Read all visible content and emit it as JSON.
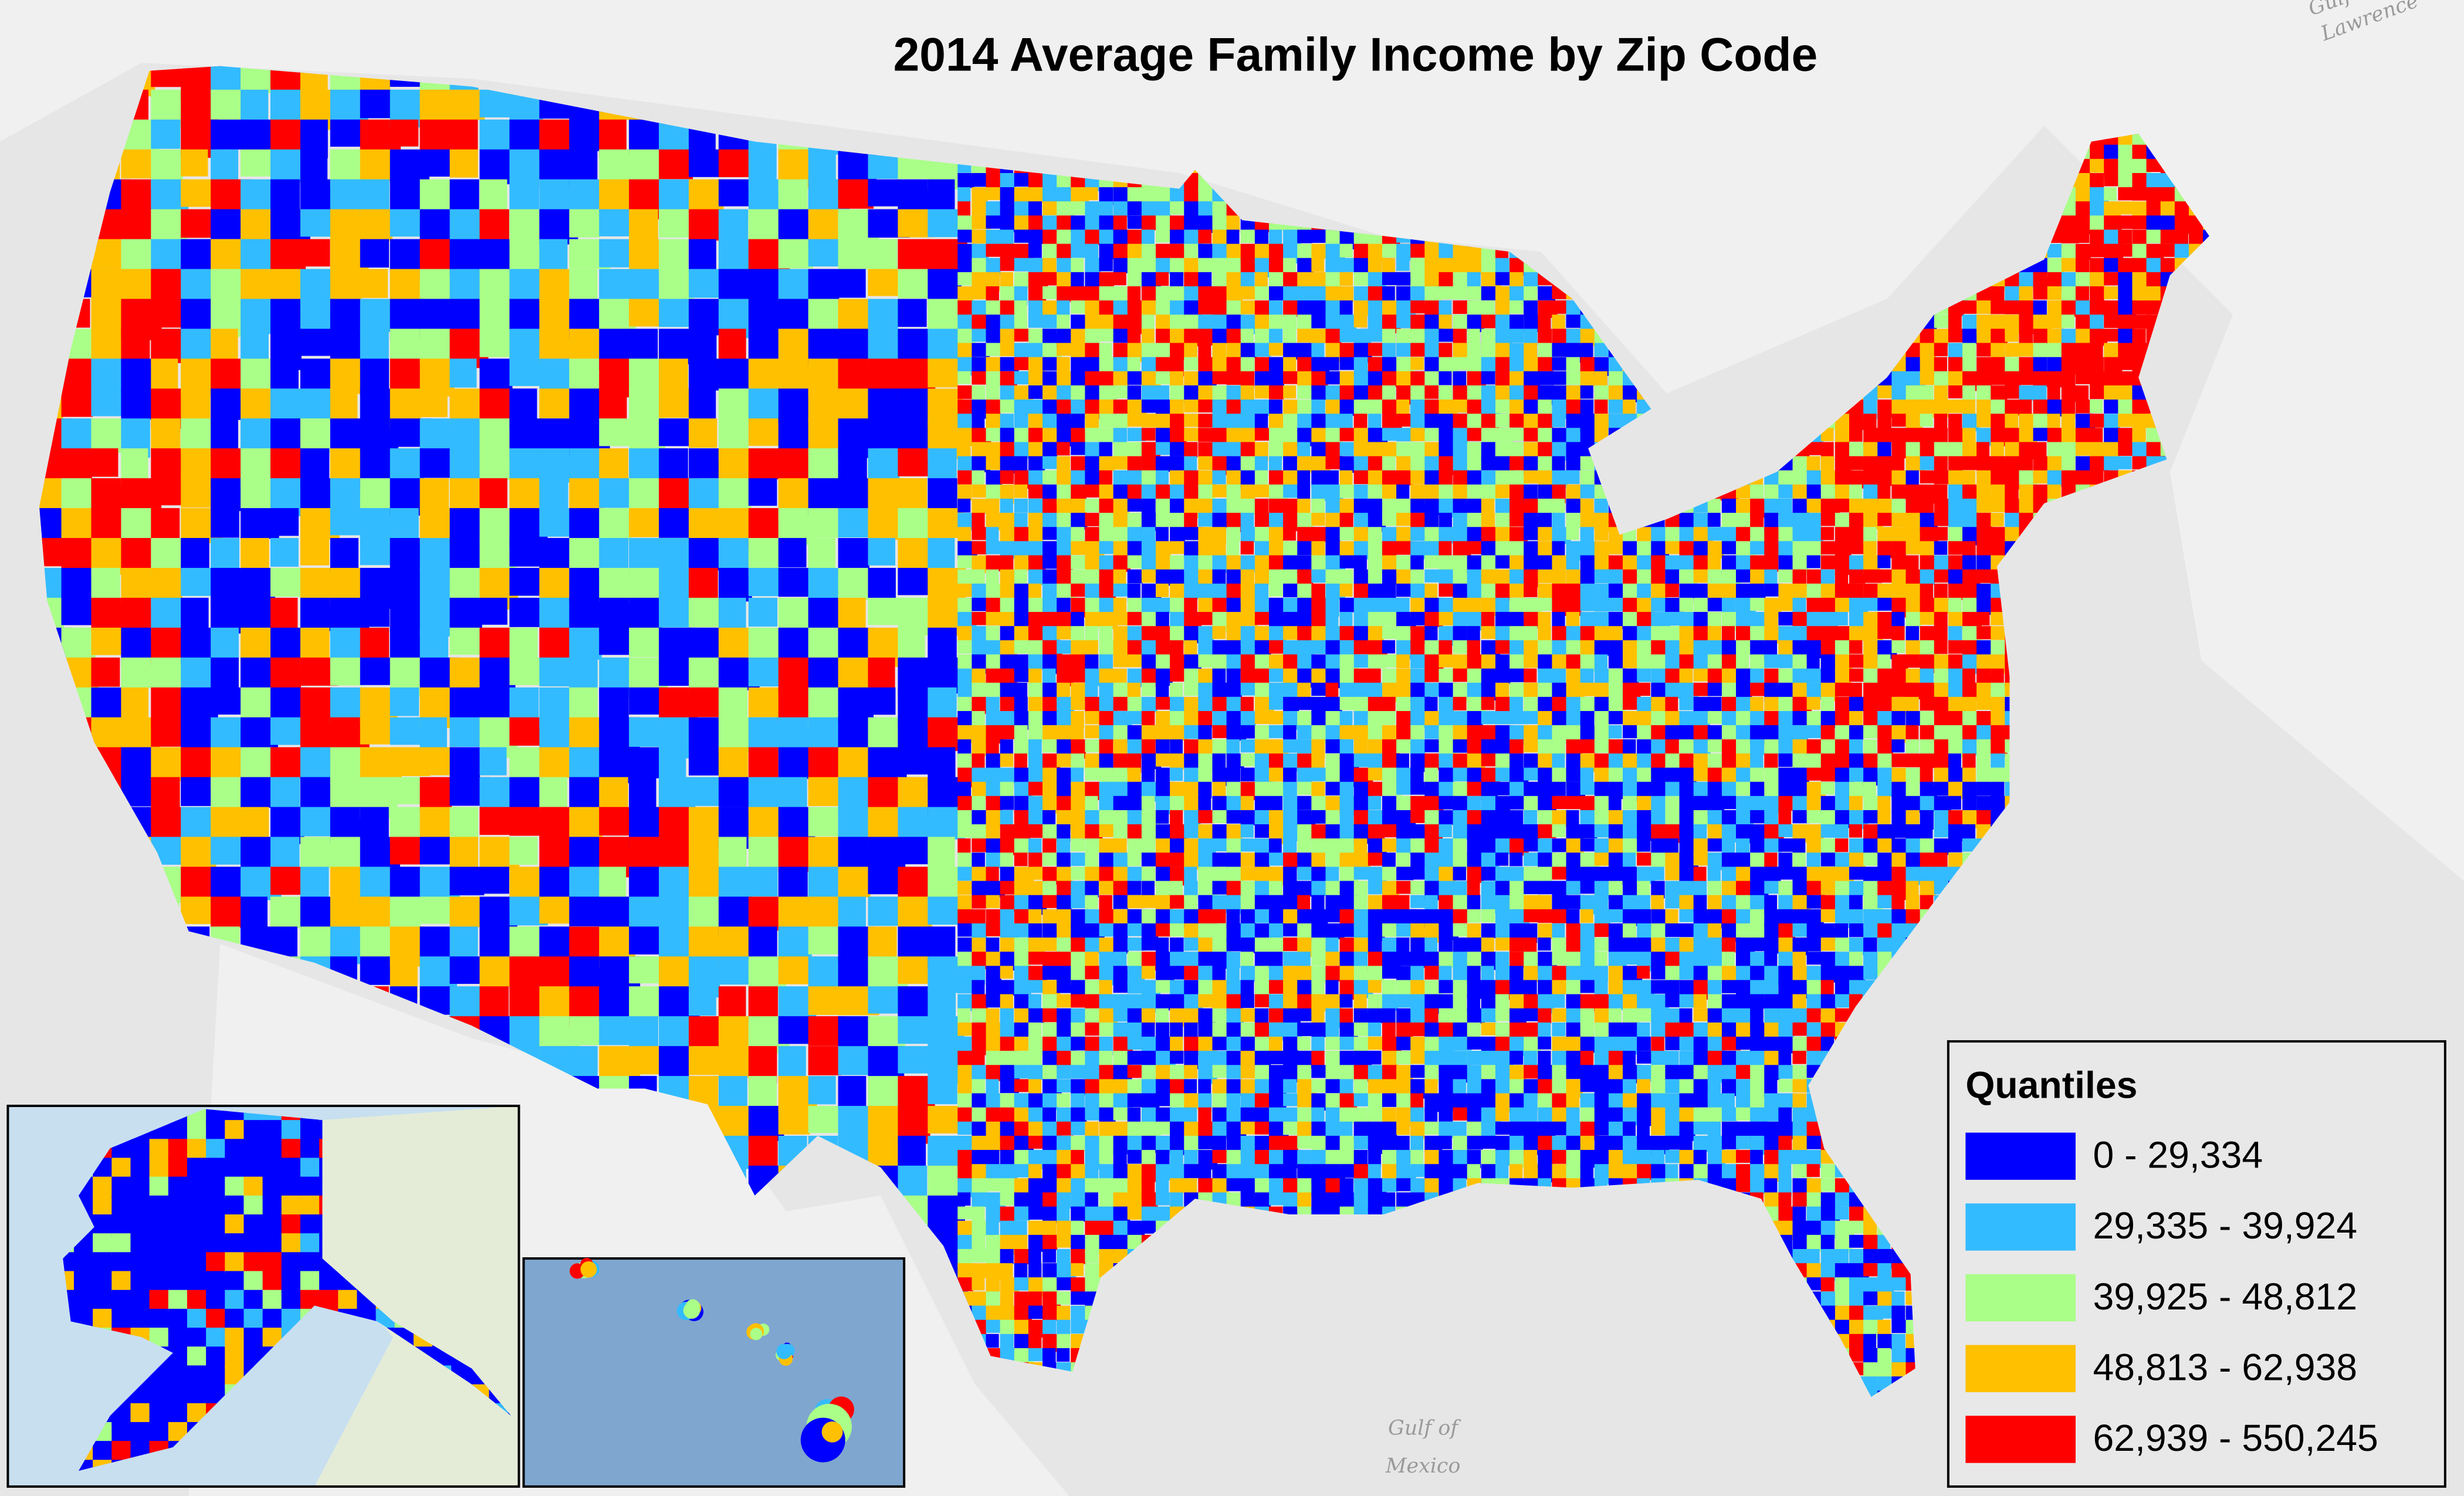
{
  "header": {
    "title": "2014 Average Family Income by Zip Code"
  },
  "basemap_labels": {
    "gulf_of_mexico": [
      "Gulf of",
      "Mexico"
    ],
    "gulf_of_lawrence": [
      "Gulf",
      "Lawrence"
    ]
  },
  "legend": {
    "title": "Quantiles",
    "items": [
      {
        "label": "0 - 29,334",
        "color": "#0000ff"
      },
      {
        "label": "29,335 - 39,924",
        "color": "#33bbff"
      },
      {
        "label": "39,925 - 48,812",
        "color": "#aaff88"
      },
      {
        "label": "48,813 - 62,938",
        "color": "#ffc000"
      },
      {
        "label": "62,939 - 550,245",
        "color": "#ff0000"
      }
    ]
  }
}
